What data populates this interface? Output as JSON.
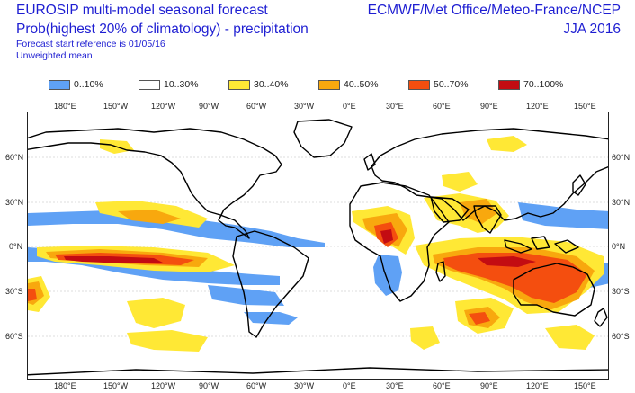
{
  "header": {
    "title_line1": "EUROSIP multi-model seasonal forecast",
    "title_line2": "Prob(highest 20% of climatology) - precipitation",
    "forecast_start": "Forecast start reference is 01/05/16",
    "weighting": "Unweighted mean",
    "centres": "ECMWF/Met Office/Meteo-France/NCEP",
    "season": "JJA 2016"
  },
  "legend": [
    {
      "label": "0..10%",
      "color": "#5fa1f5"
    },
    {
      "label": "10..30%",
      "color": "#ffffff"
    },
    {
      "label": "30..40%",
      "color": "#ffe835"
    },
    {
      "label": "40..50%",
      "color": "#f8a80e"
    },
    {
      "label": "50..70%",
      "color": "#f44e0f"
    },
    {
      "label": "70..100%",
      "color": "#c30c12"
    }
  ],
  "axes": {
    "lon_labels": [
      "180°E",
      "150°W",
      "120°W",
      "90°W",
      "60°W",
      "30°W",
      "0°E",
      "30°E",
      "60°E",
      "90°E",
      "120°E",
      "150°E"
    ],
    "lat_labels": [
      "60°N",
      "30°N",
      "0°N",
      "30°S",
      "60°S"
    ]
  }
}
